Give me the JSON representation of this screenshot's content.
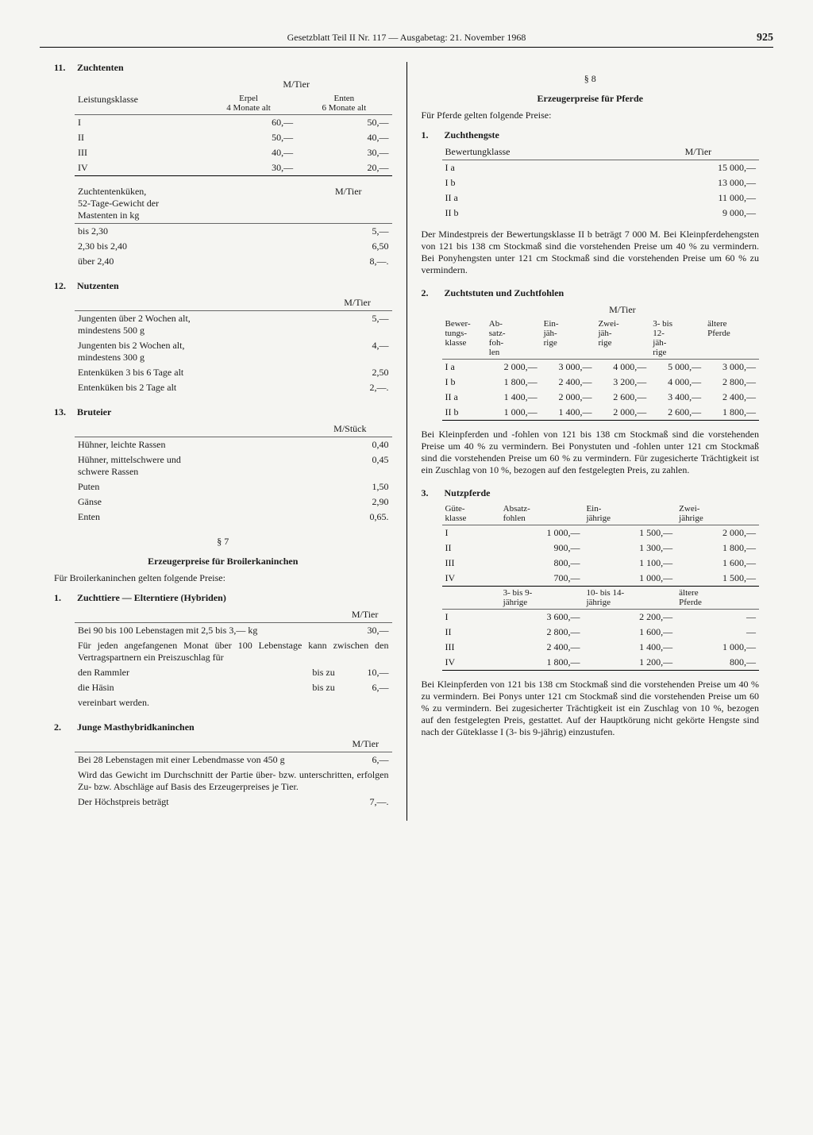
{
  "header": {
    "title": "Gesetzblatt Teil II Nr. 117 — Ausgabetag: 21. November 1968",
    "page": "925"
  },
  "left": {
    "s11": {
      "num": "11.",
      "title": "Zuchtenten",
      "unit_top": "M/Tier",
      "col1": "Leistungsklasse",
      "col2": "Erpel\n4 Monate alt",
      "col3": "Enten\n6 Monate alt",
      "rows": [
        {
          "a": "I",
          "b": "60,—",
          "c": "50,—"
        },
        {
          "a": "II",
          "b": "50,—",
          "c": "40,—"
        },
        {
          "a": "III",
          "b": "40,—",
          "c": "30,—"
        },
        {
          "a": "IV",
          "b": "30,—",
          "c": "20,—"
        }
      ],
      "sub_label": "Zuchtentenküken,\n52-Tage-Gewicht der\nMastenten in kg",
      "sub_unit": "M/Tier",
      "sub_rows": [
        {
          "a": "bis 2,30",
          "b": "5,—"
        },
        {
          "a": "2,30 bis 2,40",
          "b": "6,50"
        },
        {
          "a": "über 2,40",
          "b": "8,—."
        }
      ]
    },
    "s12": {
      "num": "12.",
      "title": "Nutzenten",
      "unit": "M/Tier",
      "rows": [
        {
          "a": "Jungenten über 2 Wochen alt,\nmindestens 500 g",
          "b": "5,—"
        },
        {
          "a": "Jungenten bis 2 Wochen alt,\nmindestens 300 g",
          "b": "4,—"
        },
        {
          "a": "Entenküken 3 bis 6 Tage alt",
          "b": "2,50"
        },
        {
          "a": "Entenküken bis 2 Tage alt",
          "b": "2,—."
        }
      ]
    },
    "s13": {
      "num": "13.",
      "title": "Bruteier",
      "unit": "M/Stück",
      "rows": [
        {
          "a": "Hühner, leichte Rassen",
          "b": "0,40"
        },
        {
          "a": "Hühner, mittelschwere und\n        schwere Rassen",
          "b": "0,45"
        },
        {
          "a": "Puten",
          "b": "1,50"
        },
        {
          "a": "Gänse",
          "b": "2,90"
        },
        {
          "a": "Enten",
          "b": "0,65."
        }
      ]
    },
    "p7": {
      "num": "§ 7",
      "title": "Erzeugerpreise für Broilerkaninchen",
      "intro": "Für Broilerkaninchen gelten folgende Preise:",
      "s1": {
        "num": "1.",
        "title": "Zuchttiere — Elterntiere (Hybriden)",
        "unit": "M/Tier",
        "rows": [
          {
            "a": "Bei 90 bis 100 Lebenstagen mit 2,5 bis 3,— kg",
            "b": "",
            "c": "30,—"
          },
          {
            "a": "Für jeden angefangenen Monat über 100 Lebenstage kann zwischen den Vertragspartnern ein Preiszuschlag für",
            "b": "",
            "c": ""
          },
          {
            "a": "den Rammler",
            "b": "bis zu",
            "c": "10,—"
          },
          {
            "a": "die Häsin",
            "b": "bis zu",
            "c": "6,—"
          },
          {
            "a": "vereinbart werden.",
            "b": "",
            "c": ""
          }
        ]
      },
      "s2": {
        "num": "2.",
        "title": "Junge Masthybridkaninchen",
        "unit": "M/Tier",
        "rows": [
          {
            "a": "Bei 28 Lebenstagen mit einer Lebendmasse von 450 g",
            "b": "6,—"
          },
          {
            "a": "Wird das Gewicht im Durchschnitt der Partie über- bzw. unterschritten, erfolgen Zu- bzw. Abschläge auf Basis des Erzeugerpreises je Tier.",
            "b": ""
          },
          {
            "a": "Der Höchstpreis beträgt",
            "b": "7,—."
          }
        ]
      }
    }
  },
  "right": {
    "p8": {
      "num": "§ 8",
      "title": "Erzeugerpreise für Pferde",
      "intro": "Für Pferde gelten folgende Preise:",
      "s1": {
        "num": "1.",
        "title": "Zuchthengste",
        "col1": "Bewertungklasse",
        "col2": "M/Tier",
        "rows": [
          {
            "a": "I a",
            "b": "15 000,—"
          },
          {
            "a": "I b",
            "b": "13 000,—"
          },
          {
            "a": "II a",
            "b": "11 000,—"
          },
          {
            "a": "II b",
            "b": "9 000,—"
          }
        ],
        "note": "Der Mindestpreis der Bewertungsklasse II b beträgt 7 000 M. Bei Kleinpferdehengsten von 121 bis 138 cm Stockmaß sind die vorstehenden Preise um 40 % zu vermindern. Bei Ponyhengsten unter 121 cm Stockmaß sind die vorstehenden Preise um 60 % zu vermindern."
      },
      "s2": {
        "num": "2.",
        "title": "Zuchtstuten und Zuchtfohlen",
        "unit": "M/Tier",
        "cols": [
          "Bewer-\ntungs-\nklasse",
          "Ab-\nsatz-\nfoh-\nlen",
          "Ein-\njäh-\nrige",
          "Zwei-\njäh-\nrige",
          "3- bis\n12-\njäh-\nrige",
          "ältere\nPferde"
        ],
        "rows": [
          {
            "a": "I a",
            "b": "2 000,—",
            "c": "3 000,—",
            "d": "4 000,—",
            "e": "5 000,—",
            "f": "3 000,—"
          },
          {
            "a": "I b",
            "b": "1 800,—",
            "c": "2 400,—",
            "d": "3 200,—",
            "e": "4 000,—",
            "f": "2 800,—"
          },
          {
            "a": "II a",
            "b": "1 400,—",
            "c": "2 000,—",
            "d": "2 600,—",
            "e": "3 400,—",
            "f": "2 400,—"
          },
          {
            "a": "II b",
            "b": "1 000,—",
            "c": "1 400,—",
            "d": "2 000,—",
            "e": "2 600,—",
            "f": "1 800,—"
          }
        ],
        "note": "Bei Kleinpferden und -fohlen von 121 bis 138 cm Stockmaß sind die vorstehenden Preise um 40 % zu vermindern. Bei Ponystuten und -fohlen unter 121 cm Stockmaß sind die vorstehenden Preise um 60 % zu vermindern. Für zugesicherte Trächtigkeit ist ein Zuschlag von 10 %, bezogen auf den festgelegten Preis, zu zahlen."
      },
      "s3": {
        "num": "3.",
        "title": "Nutzpferde",
        "cols1": [
          "Güte-\nklasse",
          "Absatz-\nfohlen",
          "Ein-\njährige",
          "Zwei-\njährige"
        ],
        "rows1": [
          {
            "a": "I",
            "b": "1 000,—",
            "c": "1 500,—",
            "d": "2 000,—"
          },
          {
            "a": "II",
            "b": "900,—",
            "c": "1 300,—",
            "d": "1 800,—"
          },
          {
            "a": "III",
            "b": "800,—",
            "c": "1 100,—",
            "d": "1 600,—"
          },
          {
            "a": "IV",
            "b": "700,—",
            "c": "1 000,—",
            "d": "1 500,—"
          }
        ],
        "cols2": [
          "",
          "3- bis 9-\njährige",
          "10- bis 14-\njährige",
          "ältere\nPferde"
        ],
        "rows2": [
          {
            "a": "I",
            "b": "3 600,—",
            "c": "2 200,—",
            "d": "—"
          },
          {
            "a": "II",
            "b": "2 800,—",
            "c": "1 600,—",
            "d": "—"
          },
          {
            "a": "III",
            "b": "2 400,—",
            "c": "1 400,—",
            "d": "1 000,—"
          },
          {
            "a": "IV",
            "b": "1 800,—",
            "c": "1 200,—",
            "d": "800,—"
          }
        ],
        "note": "Bei Kleinpferden von 121 bis 138 cm Stockmaß sind die vorstehenden Preise um 40 % zu vermindern. Bei Ponys unter 121 cm Stockmaß sind die vorstehenden Preise um 60 % zu vermindern. Bei zugesicherter Trächtigkeit ist ein Zuschlag von 10 %, bezogen auf den festgelegten Preis, gestattet. Auf der Hauptkörung nicht gekörte Hengste sind nach der Güteklasse I (3- bis 9-jährig) einzustufen."
      }
    }
  }
}
